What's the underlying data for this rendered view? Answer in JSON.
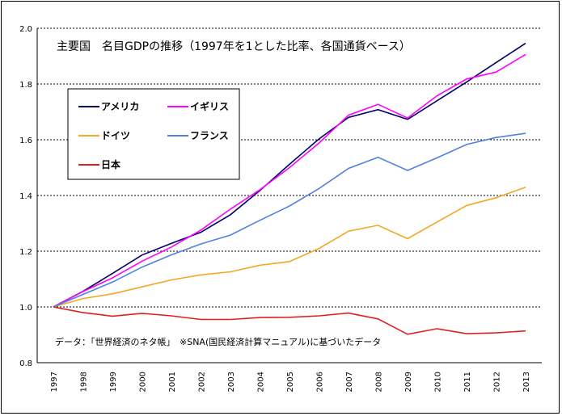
{
  "chart_data": {
    "type": "line",
    "title": "主要国　名目GDPの推移（1997年を1とした比率、各国通貨ベース）",
    "note": "データ：「世界経済のネタ帳」　※SNA(国民経済計算マニュアル)に基づいたデータ",
    "x": [
      "1997",
      "1998",
      "1999",
      "2000",
      "2001",
      "2002",
      "2003",
      "2004",
      "2005",
      "2006",
      "2007",
      "2008",
      "2009",
      "2010",
      "2011",
      "2012",
      "2013"
    ],
    "y_ticks": [
      "0.8",
      "1.0",
      "1.2",
      "1.4",
      "1.6",
      "1.8",
      "2.0"
    ],
    "ylim": [
      0.8,
      2.0
    ],
    "grid": "horizontal-dashed",
    "legend_position": "top-left",
    "series": [
      {
        "name": "アメリカ",
        "color": "#000066",
        "values": [
          1.0,
          1.056,
          1.12,
          1.186,
          1.228,
          1.268,
          1.331,
          1.418,
          1.512,
          1.603,
          1.68,
          1.708,
          1.673,
          1.74,
          1.807,
          1.877,
          1.946
        ]
      },
      {
        "name": "イギリス",
        "color": "#ff00ff",
        "values": [
          1.0,
          1.055,
          1.104,
          1.164,
          1.215,
          1.276,
          1.351,
          1.421,
          1.5,
          1.588,
          1.688,
          1.727,
          1.678,
          1.758,
          1.818,
          1.843,
          1.906
        ]
      },
      {
        "name": "ドイツ",
        "color": "#f5a623",
        "values": [
          1.0,
          1.03,
          1.047,
          1.072,
          1.097,
          1.115,
          1.126,
          1.15,
          1.163,
          1.21,
          1.272,
          1.293,
          1.245,
          1.305,
          1.364,
          1.392,
          1.43
        ]
      },
      {
        "name": "フランス",
        "color": "#4f81e0",
        "values": [
          1.0,
          1.045,
          1.089,
          1.143,
          1.187,
          1.226,
          1.258,
          1.311,
          1.362,
          1.425,
          1.497,
          1.537,
          1.49,
          1.535,
          1.583,
          1.608,
          1.623
        ]
      },
      {
        "name": "日本",
        "color": "#e02020",
        "values": [
          1.0,
          0.98,
          0.967,
          0.977,
          0.968,
          0.955,
          0.955,
          0.962,
          0.963,
          0.968,
          0.978,
          0.957,
          0.902,
          0.922,
          0.904,
          0.907,
          0.914
        ]
      }
    ]
  }
}
